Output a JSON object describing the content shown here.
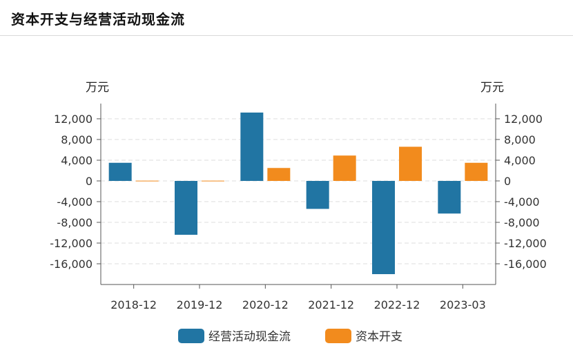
{
  "header": {
    "title": "资本开支与经营活动现金流"
  },
  "chart_data": {
    "type": "bar",
    "categories": [
      "2018-12",
      "2019-12",
      "2020-12",
      "2021-12",
      "2022-12",
      "2023-03"
    ],
    "series": [
      {
        "name": "经营活动现金流",
        "color": "#2175a3",
        "values": [
          3500,
          -10400,
          13200,
          -5400,
          -18000,
          -6300
        ]
      },
      {
        "name": "资本开支",
        "color": "#f28b1d",
        "values": [
          50,
          50,
          2500,
          4900,
          6600,
          3500
        ]
      }
    ],
    "y_left_label": "万元",
    "y_right_label": "万元",
    "ylim": [
      -18000,
      14000
    ],
    "yticks": [
      12000,
      8000,
      4000,
      0,
      -4000,
      -8000,
      -12000,
      -16000
    ],
    "ytick_labels": [
      "12,000",
      "8,000",
      "4,000",
      "0",
      "-4,000",
      "-8,000",
      "-12,000",
      "-16,000"
    ],
    "grid": true,
    "legend_position": "bottom-center"
  }
}
